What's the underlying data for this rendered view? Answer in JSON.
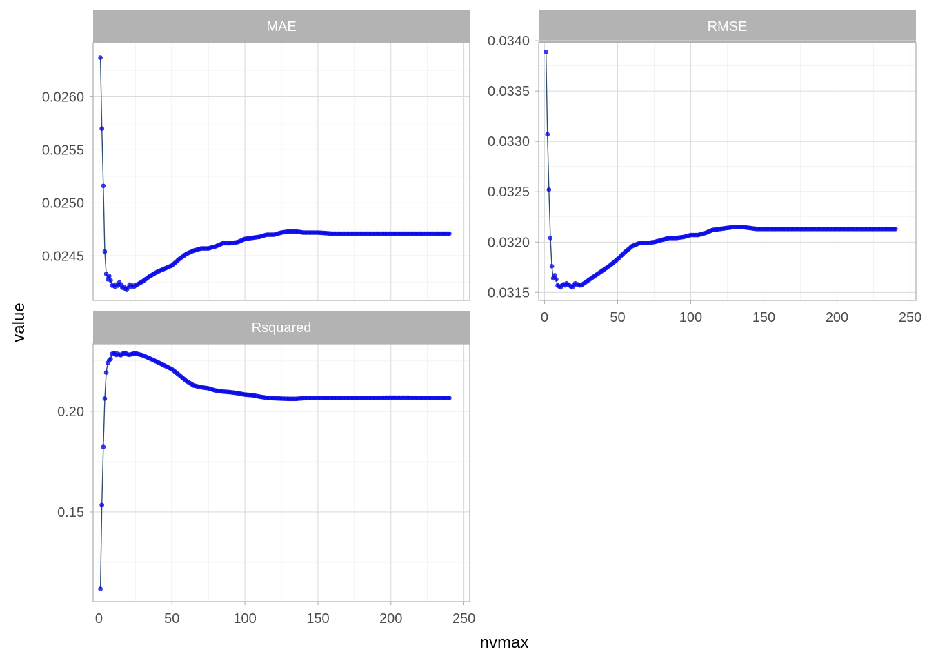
{
  "chart_data": {
    "type": "line",
    "facet_layout": "wrap",
    "xlabel": "nvmax",
    "ylabel": "value",
    "x_ticks": [
      0,
      50,
      100,
      150,
      200,
      250
    ],
    "x_range": [
      -4,
      254
    ],
    "point_color": "#0000ff",
    "line_color": "#2f4f6f",
    "panels": [
      {
        "name": "MAE",
        "yticks": [
          "0.0245",
          "0.0250",
          "0.0255",
          "0.0260"
        ],
        "ylim": [
          0.02408,
          0.02651
        ],
        "points": [
          [
            1,
            0.02637
          ],
          [
            2,
            0.0257
          ],
          [
            3,
            0.02516
          ],
          [
            4,
            0.02454
          ],
          [
            5,
            0.02433
          ],
          [
            6,
            0.02428
          ],
          [
            7,
            0.02431
          ],
          [
            8,
            0.02427
          ],
          [
            9,
            0.02422
          ],
          [
            10,
            0.02422
          ],
          [
            11,
            0.02421
          ],
          [
            12,
            0.02423
          ],
          [
            13,
            0.02422
          ],
          [
            14,
            0.02425
          ],
          [
            15,
            0.02423
          ],
          [
            16,
            0.0242
          ],
          [
            17,
            0.02421
          ],
          [
            18,
            0.02419
          ],
          [
            19,
            0.02418
          ],
          [
            20,
            0.0242
          ],
          [
            21,
            0.02423
          ],
          [
            22,
            0.02421
          ],
          [
            23,
            0.02422
          ],
          [
            24,
            0.02421
          ],
          [
            25,
            0.02422
          ],
          [
            30,
            0.02426
          ],
          [
            35,
            0.02431
          ],
          [
            40,
            0.02435
          ],
          [
            45,
            0.02438
          ],
          [
            50,
            0.02441
          ],
          [
            55,
            0.02447
          ],
          [
            60,
            0.02452
          ],
          [
            65,
            0.02455
          ],
          [
            70,
            0.02457
          ],
          [
            75,
            0.02457
          ],
          [
            80,
            0.02459
          ],
          [
            85,
            0.02462
          ],
          [
            90,
            0.02462
          ],
          [
            95,
            0.02463
          ],
          [
            100,
            0.02466
          ],
          [
            105,
            0.02467
          ],
          [
            110,
            0.02468
          ],
          [
            115,
            0.0247
          ],
          [
            120,
            0.0247
          ],
          [
            125,
            0.02472
          ],
          [
            130,
            0.02473
          ],
          [
            135,
            0.02473
          ],
          [
            140,
            0.02472
          ],
          [
            145,
            0.02472
          ],
          [
            150,
            0.02472
          ],
          [
            160,
            0.02471
          ],
          [
            170,
            0.02471
          ],
          [
            180,
            0.02471
          ],
          [
            190,
            0.02471
          ],
          [
            200,
            0.02471
          ],
          [
            210,
            0.02471
          ],
          [
            220,
            0.02471
          ],
          [
            230,
            0.02471
          ],
          [
            240,
            0.02471
          ]
        ]
      },
      {
        "name": "RMSE",
        "yticks": [
          "0.0315",
          "0.0320",
          "0.0325",
          "0.0330",
          "0.0335",
          "0.0340"
        ],
        "ylim": [
          0.03142,
          0.03398
        ],
        "points": [
          [
            1,
            0.03389
          ],
          [
            2,
            0.03307
          ],
          [
            3,
            0.03252
          ],
          [
            4,
            0.03204
          ],
          [
            5,
            0.03176
          ],
          [
            6,
            0.03164
          ],
          [
            7,
            0.03167
          ],
          [
            8,
            0.03163
          ],
          [
            9,
            0.03157
          ],
          [
            10,
            0.03156
          ],
          [
            11,
            0.03155
          ],
          [
            12,
            0.03157
          ],
          [
            13,
            0.03158
          ],
          [
            14,
            0.03157
          ],
          [
            15,
            0.03159
          ],
          [
            16,
            0.03158
          ],
          [
            17,
            0.03157
          ],
          [
            18,
            0.03156
          ],
          [
            19,
            0.03155
          ],
          [
            20,
            0.03157
          ],
          [
            21,
            0.03159
          ],
          [
            22,
            0.03158
          ],
          [
            23,
            0.03158
          ],
          [
            24,
            0.03157
          ],
          [
            25,
            0.03157
          ],
          [
            30,
            0.03162
          ],
          [
            35,
            0.03167
          ],
          [
            40,
            0.03172
          ],
          [
            45,
            0.03177
          ],
          [
            50,
            0.03183
          ],
          [
            55,
            0.0319
          ],
          [
            60,
            0.03196
          ],
          [
            65,
            0.03199
          ],
          [
            70,
            0.03199
          ],
          [
            75,
            0.032
          ],
          [
            80,
            0.03202
          ],
          [
            85,
            0.03204
          ],
          [
            90,
            0.03204
          ],
          [
            95,
            0.03205
          ],
          [
            100,
            0.03207
          ],
          [
            105,
            0.03207
          ],
          [
            110,
            0.03209
          ],
          [
            115,
            0.03212
          ],
          [
            120,
            0.03213
          ],
          [
            125,
            0.03214
          ],
          [
            130,
            0.03215
          ],
          [
            135,
            0.03215
          ],
          [
            140,
            0.03214
          ],
          [
            145,
            0.03213
          ],
          [
            150,
            0.03213
          ],
          [
            160,
            0.03213
          ],
          [
            170,
            0.03213
          ],
          [
            180,
            0.03213
          ],
          [
            190,
            0.03213
          ],
          [
            200,
            0.03213
          ],
          [
            210,
            0.03213
          ],
          [
            220,
            0.03213
          ],
          [
            230,
            0.03213
          ],
          [
            240,
            0.03213
          ]
        ]
      },
      {
        "name": "Rsquared",
        "yticks": [
          "0.15",
          "0.20"
        ],
        "ylim": [
          0.1055,
          0.2335
        ],
        "points": [
          [
            1,
            0.1118
          ],
          [
            2,
            0.1535
          ],
          [
            3,
            0.1823
          ],
          [
            4,
            0.2063
          ],
          [
            5,
            0.2193
          ],
          [
            6,
            0.224
          ],
          [
            7,
            0.2253
          ],
          [
            8,
            0.226
          ],
          [
            9,
            0.2285
          ],
          [
            10,
            0.229
          ],
          [
            11,
            0.2288
          ],
          [
            12,
            0.228
          ],
          [
            13,
            0.2285
          ],
          [
            14,
            0.2282
          ],
          [
            15,
            0.2279
          ],
          [
            16,
            0.2285
          ],
          [
            17,
            0.2288
          ],
          [
            18,
            0.229
          ],
          [
            19,
            0.2285
          ],
          [
            20,
            0.2282
          ],
          [
            21,
            0.2281
          ],
          [
            22,
            0.2283
          ],
          [
            23,
            0.2285
          ],
          [
            24,
            0.2287
          ],
          [
            25,
            0.2288
          ],
          [
            30,
            0.2278
          ],
          [
            35,
            0.2262
          ],
          [
            40,
            0.2245
          ],
          [
            45,
            0.2227
          ],
          [
            50,
            0.2209
          ],
          [
            55,
            0.218
          ],
          [
            60,
            0.215
          ],
          [
            65,
            0.2128
          ],
          [
            70,
            0.212
          ],
          [
            75,
            0.2114
          ],
          [
            80,
            0.2103
          ],
          [
            85,
            0.2098
          ],
          [
            90,
            0.2095
          ],
          [
            95,
            0.209
          ],
          [
            100,
            0.2083
          ],
          [
            105,
            0.208
          ],
          [
            110,
            0.2073
          ],
          [
            115,
            0.2067
          ],
          [
            120,
            0.2065
          ],
          [
            125,
            0.2063
          ],
          [
            130,
            0.2062
          ],
          [
            135,
            0.2062
          ],
          [
            140,
            0.2065
          ],
          [
            145,
            0.2066
          ],
          [
            150,
            0.2066
          ],
          [
            160,
            0.2066
          ],
          [
            170,
            0.2066
          ],
          [
            180,
            0.2066
          ],
          [
            190,
            0.2067
          ],
          [
            200,
            0.2068
          ],
          [
            210,
            0.2068
          ],
          [
            220,
            0.2067
          ],
          [
            230,
            0.2066
          ],
          [
            240,
            0.2066
          ]
        ]
      }
    ]
  }
}
